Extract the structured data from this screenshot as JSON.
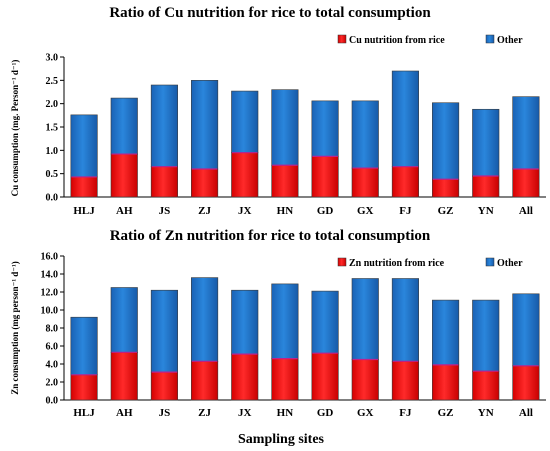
{
  "sites_label": "Sampling sites",
  "chart_data": [
    {
      "type": "bar",
      "stacked": true,
      "title": "Ratio of Cu nutrition for rice to total consumption",
      "ylabel": "Cu consumption (mg. Person⁻¹ d⁻¹)",
      "xlabel": "Sampling sites",
      "ylim": [
        0,
        3.0
      ],
      "yticks": [
        "0.0",
        "0.5",
        "1.0",
        "1.5",
        "2.0",
        "2.5",
        "3.0"
      ],
      "categories": [
        "HLJ",
        "AH",
        "JS",
        "ZJ",
        "JX",
        "HN",
        "GD",
        "GX",
        "FJ",
        "GZ",
        "YN",
        "All"
      ],
      "series": [
        {
          "name": "Cu nutrition from rice",
          "color": "#ff0000",
          "values": [
            0.43,
            0.92,
            0.65,
            0.6,
            0.95,
            0.68,
            0.87,
            0.62,
            0.65,
            0.38,
            0.45,
            0.6
          ]
        },
        {
          "name": "Other",
          "color": "#1e72c8",
          "values": [
            1.33,
            1.2,
            1.75,
            1.9,
            1.32,
            1.62,
            1.19,
            1.44,
            2.05,
            1.64,
            1.43,
            1.55
          ]
        }
      ],
      "legend": "top-right"
    },
    {
      "type": "bar",
      "stacked": true,
      "title": "Ratio of Zn nutrition for rice to total consumption",
      "ylabel": "Zn consumption (mg person⁻¹ d⁻¹)",
      "xlabel": "Sampling sites",
      "ylim": [
        0,
        16.0
      ],
      "yticks": [
        "0.0",
        "2.0",
        "4.0",
        "6.0",
        "8.0",
        "10.0",
        "12.0",
        "14.0",
        "16.0"
      ],
      "categories": [
        "HLJ",
        "AH",
        "JS",
        "ZJ",
        "JX",
        "HN",
        "GD",
        "GX",
        "FJ",
        "GZ",
        "YN",
        "All"
      ],
      "series": [
        {
          "name": "Zn nutrition from rice",
          "color": "#ff0000",
          "values": [
            2.8,
            5.3,
            3.1,
            4.3,
            5.1,
            4.6,
            5.2,
            4.5,
            4.3,
            3.9,
            3.2,
            3.8
          ]
        },
        {
          "name": "Other",
          "color": "#1e72c8",
          "values": [
            6.4,
            7.2,
            9.1,
            9.3,
            7.1,
            8.3,
            6.9,
            9.0,
            9.2,
            7.2,
            7.9,
            8.0
          ]
        }
      ],
      "legend": "top-right"
    }
  ]
}
